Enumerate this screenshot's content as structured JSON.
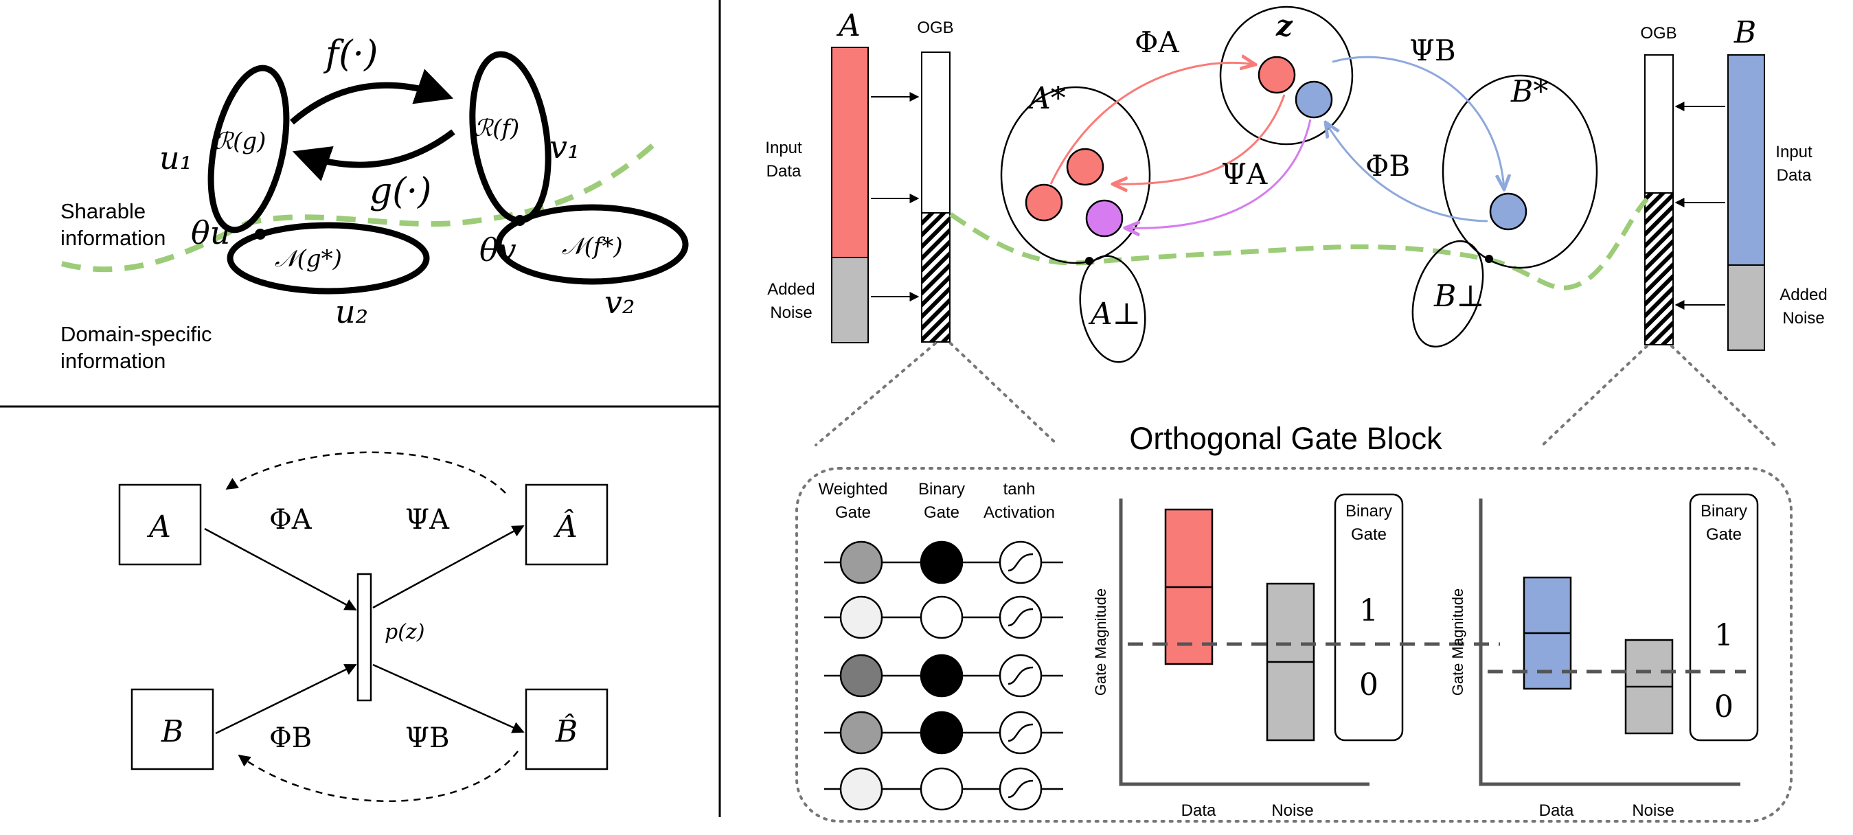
{
  "panel_a": {
    "f_label": "f(·)",
    "g_label": "g(·)",
    "R_g": "ℛ(g)",
    "R_f": "ℛ(f)",
    "N_g": "𝒩(g*)",
    "N_f": "𝒩(f*)",
    "u1": "u₁",
    "v1": "v₁",
    "u2": "u₂",
    "v2": "v₂",
    "theta_u": "θu",
    "theta_v": "θv",
    "sharable_1": "Sharable",
    "sharable_2": "information",
    "domain_1": "Domain-specific",
    "domain_2": "information"
  },
  "panel_b": {
    "A": "A",
    "B": "B",
    "A_hat": "Â",
    "B_hat": "B̂",
    "phi_A": "ΦA",
    "psi_A": "ΨA",
    "phi_B": "ΦB",
    "psi_B": "ΨB",
    "pz": "p(z)"
  },
  "panel_c": {
    "A": "A",
    "B": "B",
    "ogb_left": "OGB",
    "ogb_right": "OGB",
    "input_1": "Input",
    "input_2": "Data",
    "noise_1": "Added",
    "noise_2": "Noise",
    "A_star": "A*",
    "B_star": "B*",
    "A_perp": "A⊥",
    "B_perp": "B⊥",
    "z": "z",
    "phi_A": "ΦA",
    "psi_A": "ΨA",
    "phi_B": "ΦB",
    "psi_B": "ΨB",
    "block_title": "Orthogonal  Gate Block",
    "col_weighted_1": "Weighted",
    "col_weighted_2": "Gate",
    "col_binary_1": "Binary",
    "col_binary_2": "Gate",
    "col_tanh_1": "tanh",
    "col_tanh_2": "Activation",
    "ylabel": "Gate Magnitude",
    "x_data": "Data",
    "x_noise": "Noise",
    "bg_1": "Binary",
    "bg_2": "Gate",
    "one": "1",
    "zero": "0"
  },
  "colors": {
    "red": "#f97b78",
    "blue": "#8ea8dc",
    "purple": "#d67cf0",
    "green_dash": "#9ccc78",
    "gray": "#bdbdbd"
  }
}
